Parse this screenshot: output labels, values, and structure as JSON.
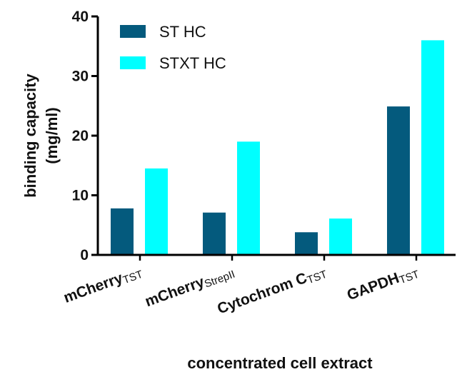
{
  "chart_data": {
    "type": "bar",
    "title": "",
    "xlabel": "concentrated cell extract",
    "ylabel": "binding capacity (mg/ml)",
    "ylabel_lines": [
      "binding capacity",
      "(mg/ml)"
    ],
    "ylim": [
      0,
      40
    ],
    "yticks": [
      0,
      10,
      20,
      30,
      40
    ],
    "grid": false,
    "legend_position": "top-left",
    "categories": [
      {
        "main": "mCherry",
        "sub": "TST"
      },
      {
        "main": "mCherry",
        "sub": "StrepII"
      },
      {
        "main": "Cytochrom C",
        "sub": "TST"
      },
      {
        "main": "GAPDH",
        "sub": "TST"
      }
    ],
    "category_labels": [
      "mCherryTST",
      "mCherryStrepII",
      "Cytochrom CTST",
      "GAPDHTST"
    ],
    "series": [
      {
        "name": "ST HC",
        "color": "#045a7d",
        "values": [
          7.8,
          7.1,
          3.8,
          24.9
        ]
      },
      {
        "name": "STXT HC",
        "color": "#00ffff",
        "values": [
          14.5,
          19.0,
          6.1,
          36.0
        ]
      }
    ]
  }
}
